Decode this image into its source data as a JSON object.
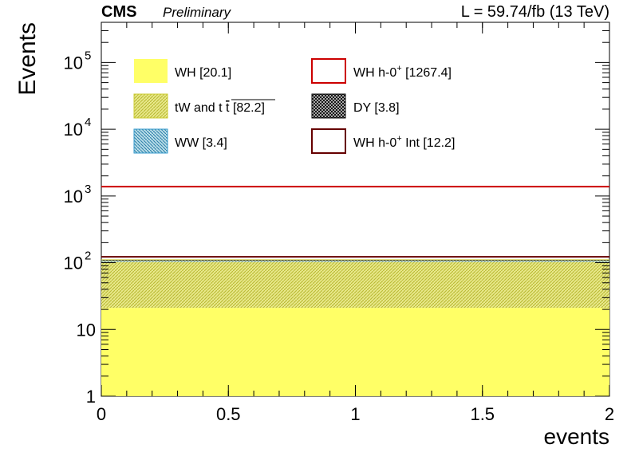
{
  "header": {
    "experiment": "CMS",
    "status": "Preliminary",
    "lumi": "L = 59.74/fb (13 TeV)"
  },
  "chart_data": {
    "type": "bar",
    "xlabel": "events",
    "ylabel": "Events",
    "xlim": [
      0,
      2
    ],
    "ylim": [
      1,
      400000
    ],
    "yscale": "log",
    "x_ticks": [
      "0",
      "0.5",
      "1",
      "1.5",
      "2"
    ],
    "y_ticks": [
      {
        "value": 1,
        "base": "1",
        "exp": ""
      },
      {
        "value": 10,
        "base": "10",
        "exp": ""
      },
      {
        "value": 100,
        "base": "10",
        "exp": "2"
      },
      {
        "value": 1000,
        "base": "10",
        "exp": "3"
      },
      {
        "value": 10000,
        "base": "10",
        "exp": "4"
      },
      {
        "value": 100000,
        "base": "10",
        "exp": "5"
      }
    ],
    "stack": [
      {
        "name": "WH",
        "bracket": "[20.1]",
        "value": 20.1,
        "color": "#ffff66"
      },
      {
        "name": "tW and t",
        "bracket": "[82.2]",
        "value": 82.2,
        "color": "#cccc33"
      },
      {
        "name": "WW",
        "bracket": "[3.4]",
        "value": 3.4,
        "color": "#3399cc"
      },
      {
        "name": "DY",
        "bracket": "[3.8]",
        "value": 3.8,
        "color": "#333333"
      }
    ],
    "lines": [
      {
        "name": "WH h-0",
        "sup": "+",
        "bracket": "[1267.4]",
        "value": 1267.4,
        "color": "#cc0000"
      },
      {
        "name": "WH h-0",
        "sup": "+",
        "suffix": " Int",
        "bracket": "[12.2]",
        "value": 12.2,
        "color": "#660000"
      }
    ],
    "legend_placement": "top"
  }
}
